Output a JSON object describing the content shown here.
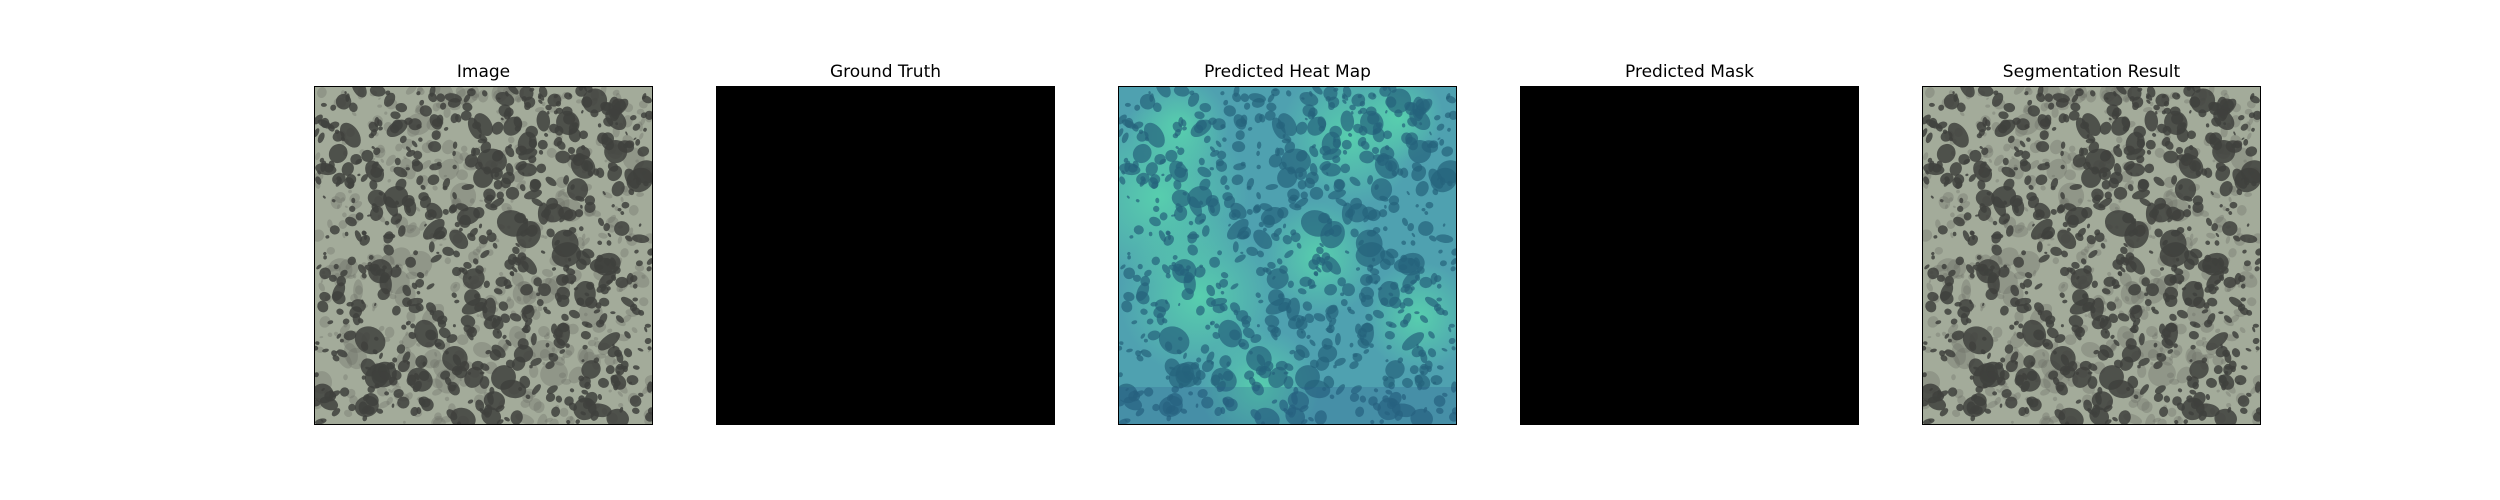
{
  "figure": {
    "panels": [
      {
        "title": "Image",
        "kind": "texture"
      },
      {
        "title": "Ground Truth",
        "kind": "mask"
      },
      {
        "title": "Predicted Heat Map",
        "kind": "heatmap"
      },
      {
        "title": "Predicted Mask",
        "kind": "mask"
      },
      {
        "title": "Segmentation Result",
        "kind": "texture"
      }
    ],
    "colors": {
      "texture_background": "#a3ab9a",
      "texture_spot": "#3f413d",
      "mask_fill": "#000000",
      "heatmap_background": "#4fa1b0",
      "heatmap_spot": "#25627c",
      "heatmap_hot": "#59d6ad"
    }
  }
}
